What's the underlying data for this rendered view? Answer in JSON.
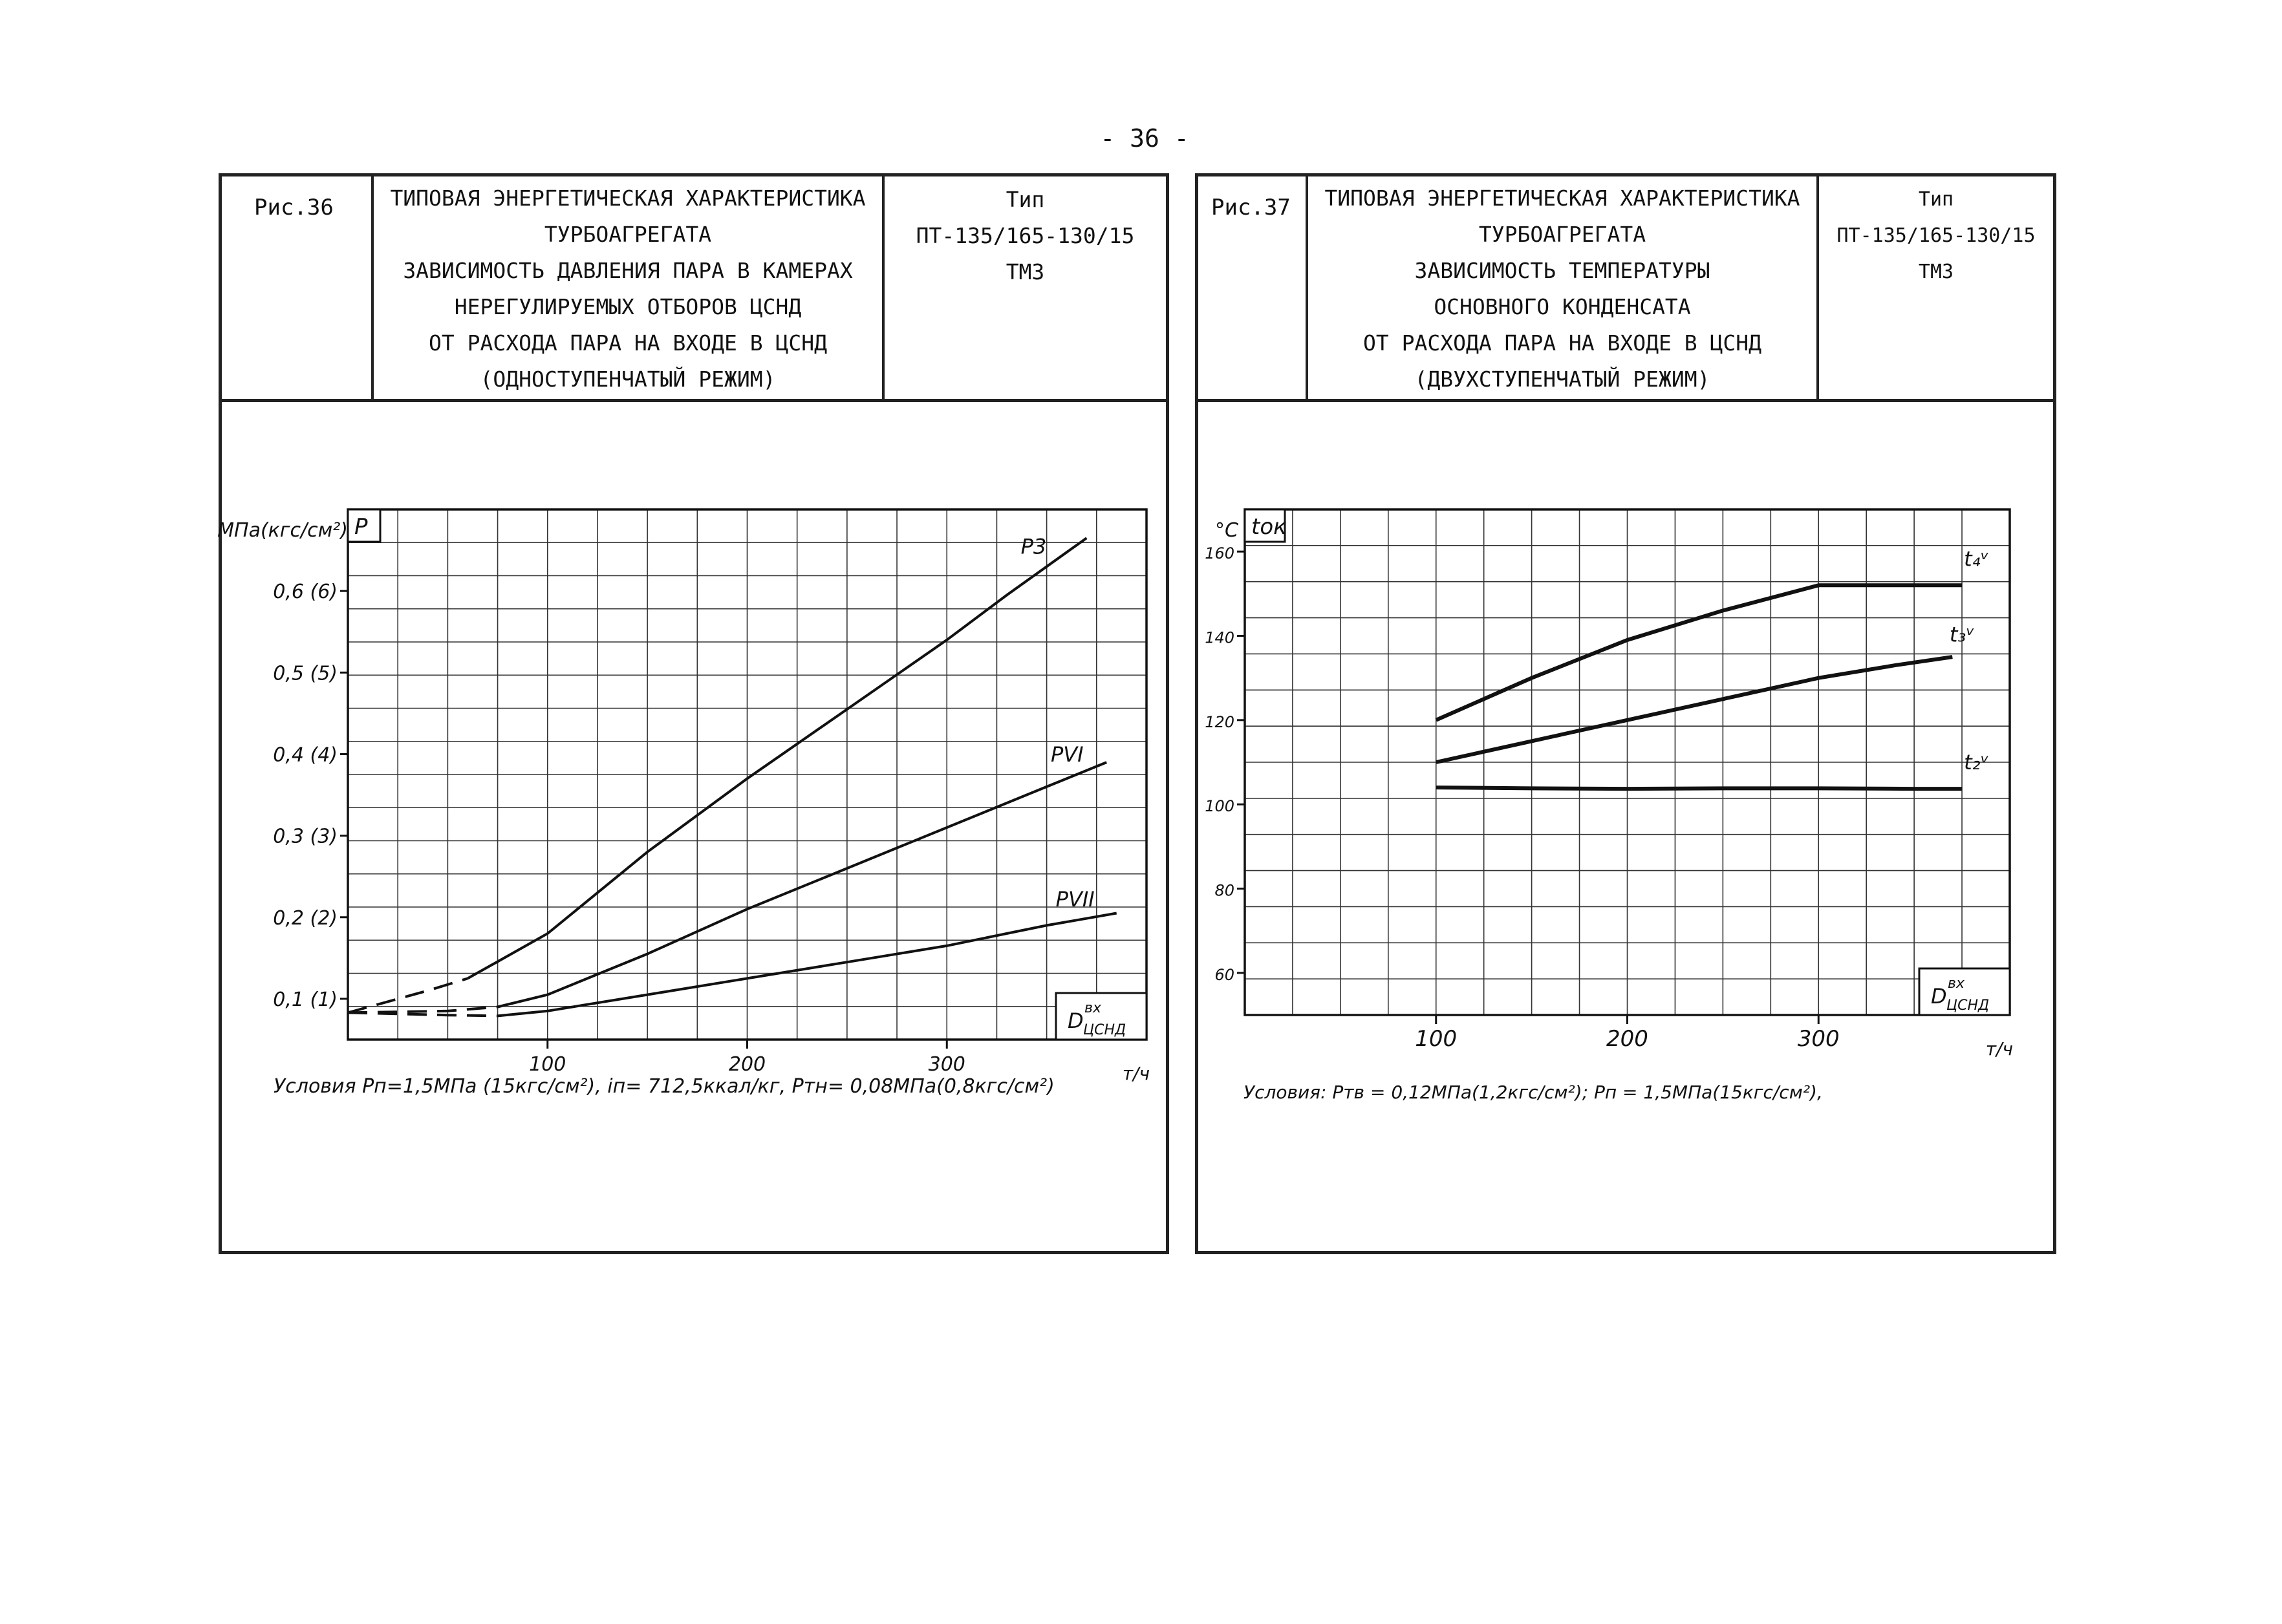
{
  "page_number": "- 36 -",
  "figures": [
    {
      "fig_label": "Рис.36",
      "title_lines": [
        "ТИПОВАЯ ЭНЕРГЕТИЧЕСКАЯ ХАРАКТЕРИСТИКА",
        "ТУРБОАГРЕГАТА"
      ],
      "subtitle_lines": [
        "ЗАВИСИМОСТЬ ДАВЛЕНИЯ ПАРА В КАМЕРАХ",
        "НЕРЕГУЛИРУЕМЫХ ОТБОРОВ ЦСНД",
        "ОТ РАСХОДА ПАРА НА ВХОДЕ В ЦСНД",
        "(ОДНОСТУПЕНЧАТЫЙ РЕЖИМ)"
      ],
      "type_label": "Тип",
      "type_value": "ПТ-135/165-130/15",
      "maker": "ТМЗ",
      "conditions": "Условия   Pп=1,5МПа (15кгс/см²),  iп= 712,5ккал/кг,  Pтн= 0,08МПа(0,8кгс/см²)"
    },
    {
      "fig_label": "Рис.37",
      "title_lines": [
        "ТИПОВАЯ ЭНЕРГЕТИЧЕСКАЯ ХАРАКТЕРИСТИКА",
        "ТУРБОАГРЕГАТА"
      ],
      "subtitle_lines": [
        "ЗАВИСИМОСТЬ ТЕМПЕРАТУРЫ",
        "ОСНОВНОГО КОНДЕНСАТА",
        "ОТ РАСХОДА ПАРА НА ВХОДЕ В ЦСНД",
        "(ДВУХСТУПЕНЧАТЫЙ РЕЖИМ)"
      ],
      "type_label": "Тип",
      "type_value": "ПТ-135/165-130/15",
      "maker": "ТМЗ",
      "conditions": "Условия: Pтв = 0,12МПа(1,2кгс/см²); Pп = 1,5МПа(15кгс/см²),"
    }
  ],
  "chart_data": [
    {
      "type": "line",
      "ylabel_unit": "МПа(кгс/см²)",
      "ylabel_symbol": "P",
      "xlabel_symbol": "D",
      "xlabel_sub": "ЦСНД",
      "xlabel_sup": "вх",
      "x_unit": "т/ч",
      "xlim": [
        0,
        400
      ],
      "ylim": [
        0.05,
        0.7
      ],
      "x_ticks": [
        100,
        200,
        300
      ],
      "y_ticks": [
        0.1,
        0.2,
        0.3,
        0.4,
        0.5,
        0.6
      ],
      "y_tick_labels": [
        "0,1 (1)",
        "0,2 (2)",
        "0,3 (3)",
        "0,4 (4)",
        "0,5 (5)",
        "0,6 (6)"
      ],
      "grid": true,
      "series": [
        {
          "name": "P3",
          "dashed_until_x": 60,
          "points": [
            [
              0,
              0.083
            ],
            [
              40,
              0.11
            ],
            [
              60,
              0.125
            ],
            [
              100,
              0.18
            ],
            [
              150,
              0.28
            ],
            [
              200,
              0.37
            ],
            [
              250,
              0.455
            ],
            [
              300,
              0.54
            ],
            [
              330,
              0.595
            ],
            [
              370,
              0.665
            ]
          ]
        },
        {
          "name": "PVI",
          "dashed_until_x": 90,
          "points": [
            [
              0,
              0.083
            ],
            [
              50,
              0.085
            ],
            [
              75,
              0.09
            ],
            [
              100,
              0.105
            ],
            [
              150,
              0.155
            ],
            [
              200,
              0.21
            ],
            [
              250,
              0.26
            ],
            [
              300,
              0.31
            ],
            [
              350,
              0.36
            ],
            [
              380,
              0.39
            ]
          ]
        },
        {
          "name": "PVII",
          "dashed_until_x": 90,
          "points": [
            [
              0,
              0.083
            ],
            [
              50,
              0.08
            ],
            [
              75,
              0.079
            ],
            [
              100,
              0.085
            ],
            [
              150,
              0.105
            ],
            [
              200,
              0.125
            ],
            [
              250,
              0.145
            ],
            [
              300,
              0.165
            ],
            [
              350,
              0.19
            ],
            [
              385,
              0.205
            ]
          ]
        }
      ]
    },
    {
      "type": "line",
      "ylabel_unit": "°C",
      "ylabel_symbol": "tок",
      "xlabel_symbol": "D",
      "xlabel_sub": "ЦСНД",
      "xlabel_sup": "вх",
      "x_unit": "т/ч",
      "xlim": [
        0,
        400
      ],
      "ylim": [
        50,
        170
      ],
      "x_ticks": [
        100,
        200,
        300
      ],
      "x_tick_labels": [
        "100",
        "200",
        "300"
      ],
      "y_ticks": [
        60,
        80,
        100,
        120,
        140,
        160
      ],
      "grid": true,
      "series": [
        {
          "name": "t₄ᵛ",
          "points": [
            [
              100,
              120
            ],
            [
              150,
              130
            ],
            [
              200,
              139
            ],
            [
              250,
              146
            ],
            [
              300,
              152
            ],
            [
              350,
              152
            ],
            [
              375,
              152
            ]
          ]
        },
        {
          "name": "t₃ᵛ",
          "points": [
            [
              100,
              110
            ],
            [
              150,
              115
            ],
            [
              200,
              120
            ],
            [
              250,
              125
            ],
            [
              300,
              130
            ],
            [
              340,
              133
            ],
            [
              370,
              135
            ]
          ]
        },
        {
          "name": "t₂ᵛ",
          "points": [
            [
              100,
              104
            ],
            [
              150,
              103.8
            ],
            [
              200,
              103.7
            ],
            [
              250,
              103.8
            ],
            [
              300,
              103.8
            ],
            [
              350,
              103.7
            ],
            [
              375,
              103.7
            ]
          ]
        }
      ]
    }
  ]
}
